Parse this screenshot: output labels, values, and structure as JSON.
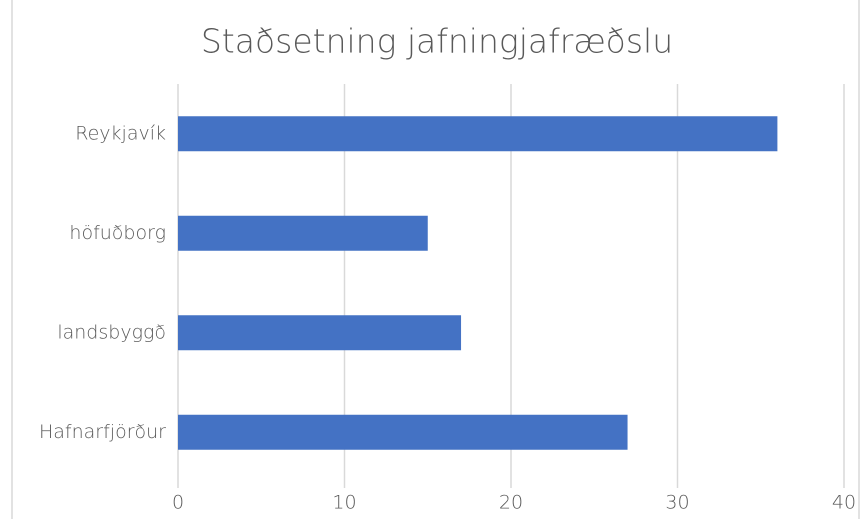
{
  "chart_data": {
    "type": "bar",
    "orientation": "horizontal",
    "title": "Staðsetning jafningjafræðslu",
    "categories": [
      "Reykjavík",
      "höfuðborg",
      "landsbyggð",
      "Hafnarfjörður"
    ],
    "values": [
      36,
      15,
      17,
      27
    ],
    "color": "#4472c4",
    "xlim": [
      0,
      40
    ],
    "xticks": [
      0,
      10,
      20,
      30,
      40
    ],
    "grid": true
  }
}
